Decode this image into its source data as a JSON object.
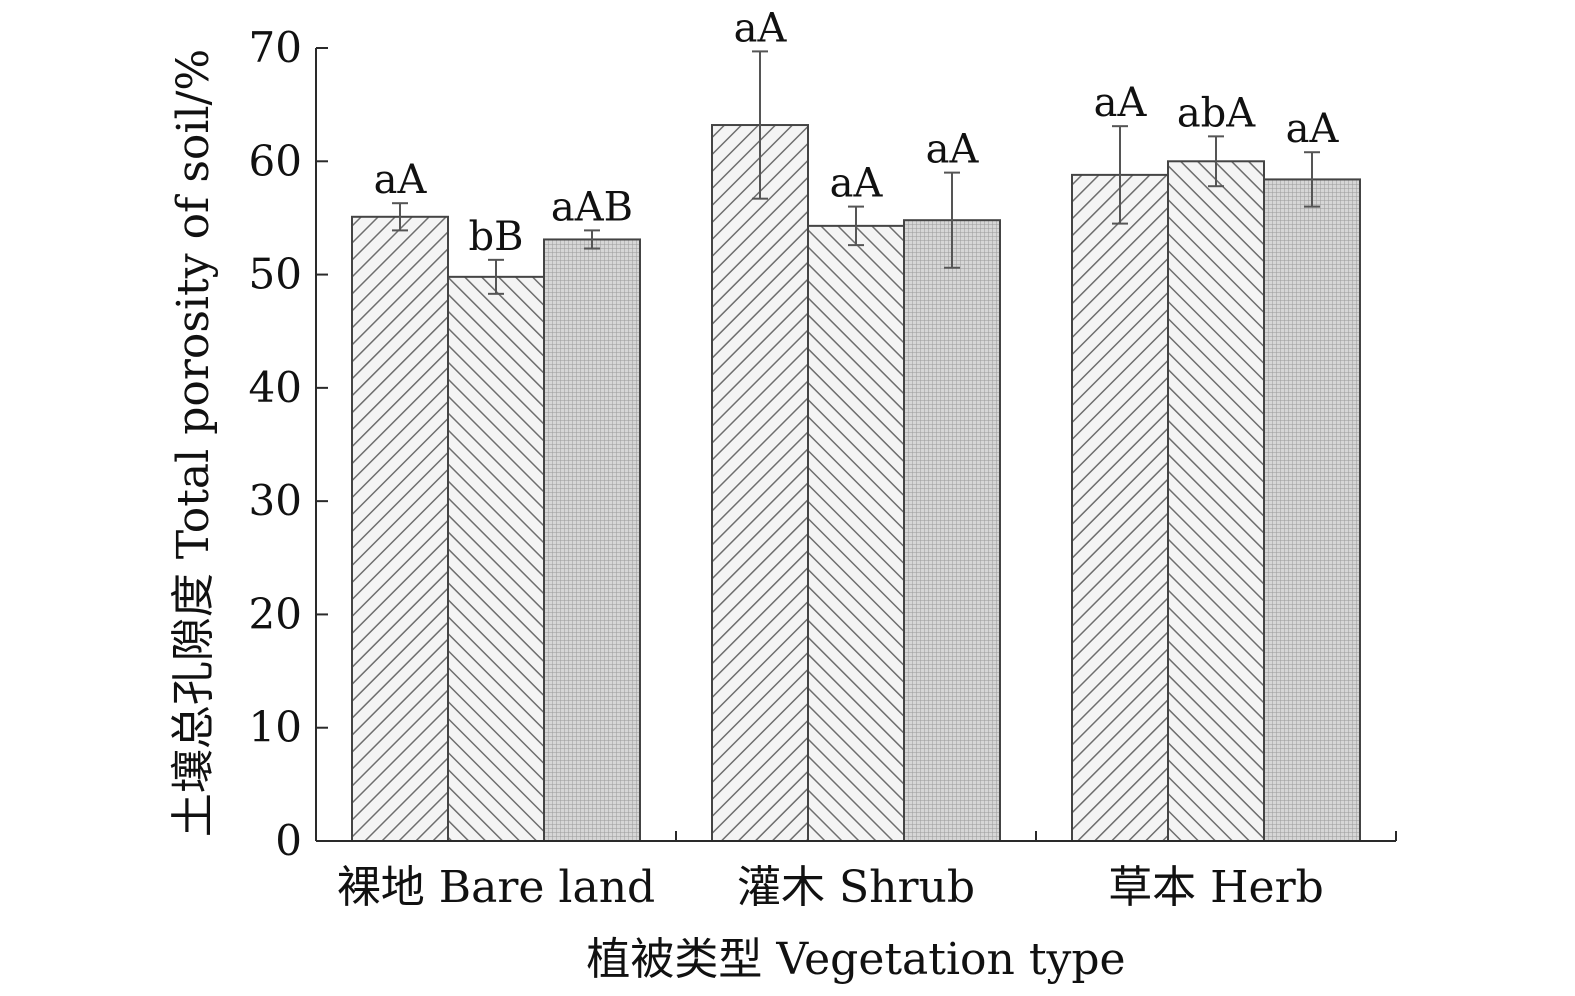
{
  "chart_data": {
    "type": "bar",
    "title": "",
    "xlabel": "植被类型 Vegetation type",
    "ylabel": "土壤总孔隙度 Total porosity of soil/%",
    "ylim": [
      0,
      70
    ],
    "yticks": [
      0,
      10,
      20,
      30,
      40,
      50,
      60,
      70
    ],
    "categories": [
      "裸地 Bare land",
      "灌木 Shrub",
      "草本 Herb"
    ],
    "grid": false,
    "legend": "none",
    "series": [
      {
        "pattern": "diagonal-forward",
        "values": [
          55.1,
          63.2,
          58.8
        ],
        "errors": [
          1.2,
          6.5,
          4.3
        ],
        "labels": [
          "aA",
          "aA",
          "aA"
        ]
      },
      {
        "pattern": "diagonal-backward",
        "values": [
          49.8,
          54.3,
          60.0
        ],
        "errors": [
          1.5,
          1.7,
          2.2
        ],
        "labels": [
          "bB",
          "aA",
          "abA"
        ]
      },
      {
        "pattern": "fine-grid",
        "values": [
          53.1,
          54.8,
          58.4
        ],
        "errors": [
          0.8,
          4.2,
          2.4
        ],
        "labels": [
          "aAB",
          "aA",
          "aA"
        ]
      }
    ],
    "colors": {
      "bar_fill": "#f4f4f4",
      "hatch": "#6e6e6e",
      "grid_pattern": "#9a9a9a",
      "outline": "#444444"
    }
  }
}
